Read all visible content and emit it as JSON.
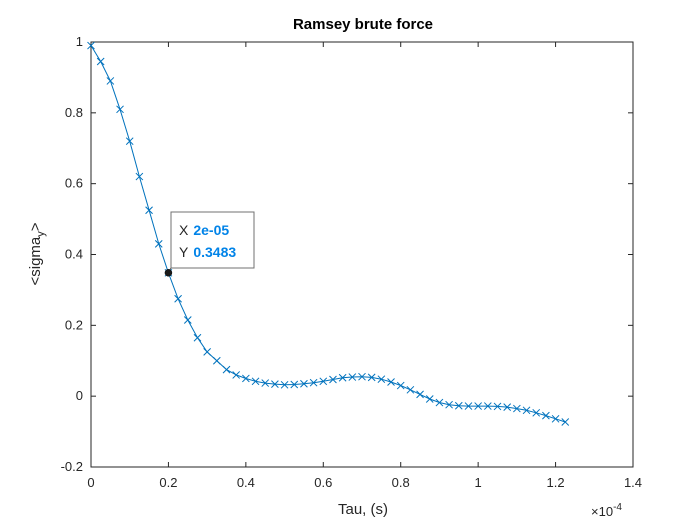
{
  "chart_data": {
    "type": "line",
    "title": "Ramsey brute force",
    "xlabel": "Tau, (s)",
    "ylabel_base": "<sigma",
    "ylabel_sub": "y",
    "ylabel_close": ">",
    "x_exponent_base": "×10",
    "x_exponent_power": "-4",
    "xlim": [
      0,
      0.00014
    ],
    "ylim": [
      -0.2,
      1
    ],
    "xticks": [
      0,
      0.2,
      0.4,
      0.6,
      0.8,
      1,
      1.2,
      1.4
    ],
    "xtick_labels": [
      "0",
      "0.2",
      "0.4",
      "0.6",
      "0.8",
      "1",
      "1.2",
      "1.4"
    ],
    "yticks": [
      -0.2,
      0,
      0.2,
      0.4,
      0.6,
      0.8,
      1
    ],
    "ytick_labels": [
      "-0.2",
      "0",
      "0.2",
      "0.4",
      "0.6",
      "0.8",
      "1"
    ],
    "grid": false,
    "series": [
      {
        "marker": "x",
        "color": "#0072BD",
        "x": [
          0,
          2.5e-06,
          5e-06,
          7.5e-06,
          1e-05,
          1.25e-05,
          1.5e-05,
          1.75e-05,
          2e-05,
          2.25e-05,
          2.5e-05,
          2.75e-05,
          3e-05,
          3.25e-05,
          3.5e-05,
          3.75e-05,
          4e-05,
          4.25e-05,
          4.5e-05,
          4.75e-05,
          5e-05,
          5.25e-05,
          5.5e-05,
          5.75e-05,
          6e-05,
          6.25e-05,
          6.5e-05,
          6.75e-05,
          7e-05,
          7.25e-05,
          7.5e-05,
          7.75e-05,
          8e-05,
          8.25e-05,
          8.5e-05,
          8.75e-05,
          9e-05,
          9.25e-05,
          9.5e-05,
          9.75e-05,
          0.0001,
          0.0001025,
          0.000105,
          0.0001075,
          0.00011,
          0.0001125,
          0.000115,
          0.0001175,
          0.00012,
          0.0001225
        ],
        "y": [
          0.99,
          0.945,
          0.89,
          0.81,
          0.72,
          0.62,
          0.525,
          0.43,
          0.3483,
          0.275,
          0.215,
          0.165,
          0.125,
          0.1,
          0.075,
          0.06,
          0.05,
          0.042,
          0.037,
          0.034,
          0.032,
          0.033,
          0.035,
          0.038,
          0.042,
          0.047,
          0.052,
          0.054,
          0.055,
          0.053,
          0.048,
          0.04,
          0.03,
          0.018,
          0.005,
          -0.008,
          -0.018,
          -0.024,
          -0.027,
          -0.028,
          -0.028,
          -0.028,
          -0.029,
          -0.031,
          -0.035,
          -0.04,
          -0.047,
          -0.055,
          -0.064,
          -0.073
        ]
      }
    ],
    "datatip": {
      "x_key": "X",
      "x_value": "2e-05",
      "y_key": "Y",
      "y_value": "0.3483",
      "point_x": 2e-05,
      "point_y": 0.3483
    }
  }
}
